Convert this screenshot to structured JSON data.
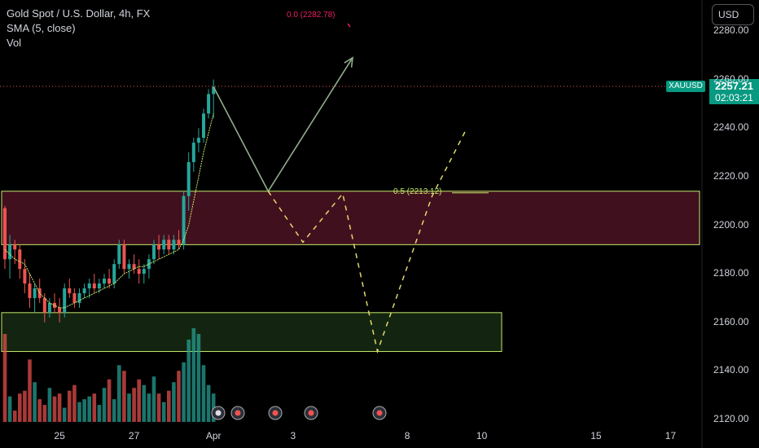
{
  "legend": {
    "title": "Gold Spot / U.S. Dollar, 4h, FX",
    "indicator": "SMA (5, close)",
    "volume": "Vol"
  },
  "currency": "USD",
  "price_tag": {
    "symbol": "XAUUSD",
    "price": "2257.21",
    "countdown": "02:03:21"
  },
  "fib_labels": {
    "top": "0.0 (2282.78)",
    "mid": "0.5 (2213.12)"
  },
  "colors": {
    "up": "#26a69a",
    "down": "#ef5350",
    "zone_red": "#6d1b32",
    "zone_green": "#1f3d1a",
    "zone_border": "#c6e86a",
    "path": "#c6e86a",
    "sma": "#c6e86a"
  },
  "chart_data": {
    "type": "candlestick",
    "title": "Gold Spot / U.S. Dollar, 4h, FX",
    "y_ticks": [
      "2280.00",
      "2260.00",
      "2240.00",
      "2220.00",
      "2200.00",
      "2180.00",
      "2160.00",
      "2140.00",
      "2120.00"
    ],
    "y_tick_values": [
      2280,
      2260,
      2240,
      2220,
      2200,
      2180,
      2160,
      2140,
      2120
    ],
    "ylim": [
      2118,
      2284
    ],
    "x_ticks": [
      {
        "label": "25",
        "bar": 11
      },
      {
        "label": "27",
        "bar": 26
      },
      {
        "label": "Apr",
        "bar": 42
      },
      {
        "label": "3",
        "bar": 58
      },
      {
        "label": "8",
        "bar": 81
      },
      {
        "label": "10",
        "bar": 96
      },
      {
        "label": "15",
        "bar": 119
      },
      {
        "label": "17",
        "bar": 134
      }
    ],
    "candles": [
      [
        2207,
        2208,
        2182,
        2186
      ],
      [
        2186,
        2196,
        2178,
        2192
      ],
      [
        2192,
        2194,
        2184,
        2190
      ],
      [
        2190,
        2192,
        2178,
        2182
      ],
      [
        2182,
        2186,
        2172,
        2176
      ],
      [
        2176,
        2180,
        2166,
        2170
      ],
      [
        2170,
        2176,
        2164,
        2174
      ],
      [
        2174,
        2178,
        2168,
        2170
      ],
      [
        2170,
        2172,
        2160,
        2164
      ],
      [
        2164,
        2170,
        2162,
        2168
      ],
      [
        2168,
        2172,
        2164,
        2166
      ],
      [
        2166,
        2170,
        2160,
        2164
      ],
      [
        2164,
        2176,
        2162,
        2174
      ],
      [
        2174,
        2178,
        2170,
        2172
      ],
      [
        2172,
        2174,
        2166,
        2168
      ],
      [
        2168,
        2174,
        2166,
        2172
      ],
      [
        2172,
        2176,
        2170,
        2174
      ],
      [
        2174,
        2178,
        2170,
        2176
      ],
      [
        2176,
        2180,
        2172,
        2174
      ],
      [
        2174,
        2178,
        2172,
        2176
      ],
      [
        2176,
        2180,
        2174,
        2178
      ],
      [
        2178,
        2182,
        2174,
        2176
      ],
      [
        2176,
        2186,
        2174,
        2184
      ],
      [
        2184,
        2194,
        2182,
        2192
      ],
      [
        2192,
        2194,
        2180,
        2182
      ],
      [
        2182,
        2186,
        2178,
        2184
      ],
      [
        2184,
        2188,
        2180,
        2182
      ],
      [
        2182,
        2186,
        2176,
        2180
      ],
      [
        2180,
        2184,
        2176,
        2182
      ],
      [
        2182,
        2188,
        2178,
        2186
      ],
      [
        2186,
        2194,
        2184,
        2192
      ],
      [
        2192,
        2196,
        2186,
        2190
      ],
      [
        2190,
        2196,
        2188,
        2194
      ],
      [
        2194,
        2196,
        2188,
        2190
      ],
      [
        2190,
        2196,
        2188,
        2194
      ],
      [
        2194,
        2198,
        2190,
        2192
      ],
      [
        2192,
        2214,
        2190,
        2212
      ],
      [
        2212,
        2230,
        2206,
        2226
      ],
      [
        2226,
        2236,
        2222,
        2234
      ],
      [
        2234,
        2240,
        2230,
        2236
      ],
      [
        2236,
        2248,
        2234,
        2246
      ],
      [
        2246,
        2256,
        2244,
        2254
      ],
      [
        2254,
        2260,
        2244,
        2257
      ]
    ],
    "sma": [
      2190,
      2188,
      2186,
      2185,
      2184,
      2180,
      2176,
      2172,
      2170,
      2168,
      2167,
      2166,
      2166,
      2167,
      2168,
      2169,
      2170,
      2171,
      2172,
      2173,
      2174,
      2175,
      2176,
      2178,
      2180,
      2181,
      2182,
      2183,
      2183,
      2184,
      2185,
      2186,
      2187,
      2188,
      2189,
      2190,
      2194,
      2200,
      2210,
      2220,
      2230,
      2238,
      2246
    ],
    "volume": [
      62,
      18,
      8,
      20,
      22,
      44,
      28,
      16,
      12,
      24,
      18,
      20,
      10,
      22,
      26,
      14,
      16,
      18,
      20,
      12,
      24,
      30,
      16,
      40,
      36,
      20,
      24,
      30,
      26,
      20,
      32,
      20,
      14,
      22,
      28,
      36,
      42,
      58,
      66,
      62,
      40,
      26,
      20
    ],
    "zones": [
      {
        "name": "resistance-zone",
        "from": 2192,
        "to": 2214,
        "x_start_bar": 0,
        "x_end_bar": 144
      },
      {
        "name": "support-zone",
        "from": 2148,
        "to": 2164,
        "x_start_bar": 0,
        "x_end_bar": 100
      }
    ],
    "projection_solid": [
      [
        42,
        2257
      ],
      [
        53,
        2214
      ],
      [
        70,
        2269
      ]
    ],
    "projection_dashed": [
      [
        53,
        2214
      ],
      [
        60,
        2193
      ],
      [
        68,
        2213
      ],
      [
        75,
        2148
      ],
      [
        86,
        2212
      ],
      [
        93,
        2240
      ]
    ],
    "fib_top_level": 2283,
    "fib_mid_level": 2213
  }
}
